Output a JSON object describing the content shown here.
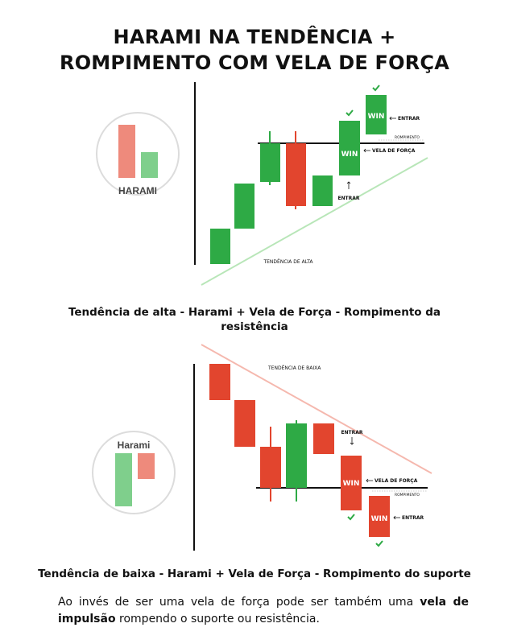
{
  "title": {
    "line1": "HARAMI NA TENDÊNCIA +",
    "line2": "ROMPIMENTO COM VELA DE FORÇA"
  },
  "colors": {
    "bull": "#2eaa45",
    "bear": "#e2452e",
    "bull_light": "#7fcf8c",
    "bear_light": "#ee8a7c",
    "trend_up": "#b8e6b8",
    "trend_down": "#f5b8ae"
  },
  "diagram_up": {
    "badge": "HARAMI",
    "labels": {
      "entrar_top": "ENTRAR",
      "rompimento": "ROMPIMENTO",
      "vela_forca": "VELA DE FORÇA",
      "entrar_bottom": "ENTRAR",
      "tendencia": "TENDÊNCIA DE ALTA",
      "win1": "WIN",
      "win2": "WIN"
    },
    "caption_line1": "Tendência de alta - Harami + Vela de Força - Rompimento da",
    "caption_line2": "resistência"
  },
  "diagram_down": {
    "badge": "Harami",
    "labels": {
      "tendencia": "TENDÊNCIA DE BAIXA",
      "entrar_top": "ENTRAR",
      "vela_forca": "VELA DE FORÇA",
      "rompimento": "ROMPIMENTO",
      "entrar_bottom": "ENTRAR",
      "win1": "WIN",
      "win2": "WIN"
    },
    "caption": "Tendência de baixa - Harami + Vela de Força - Rompimento do suporte"
  },
  "note": {
    "part1": "Ao invés de ser uma vela de força pode ser também uma ",
    "bold1": "vela de impulsão",
    "part2": " rompendo o suporte ou resistência."
  }
}
